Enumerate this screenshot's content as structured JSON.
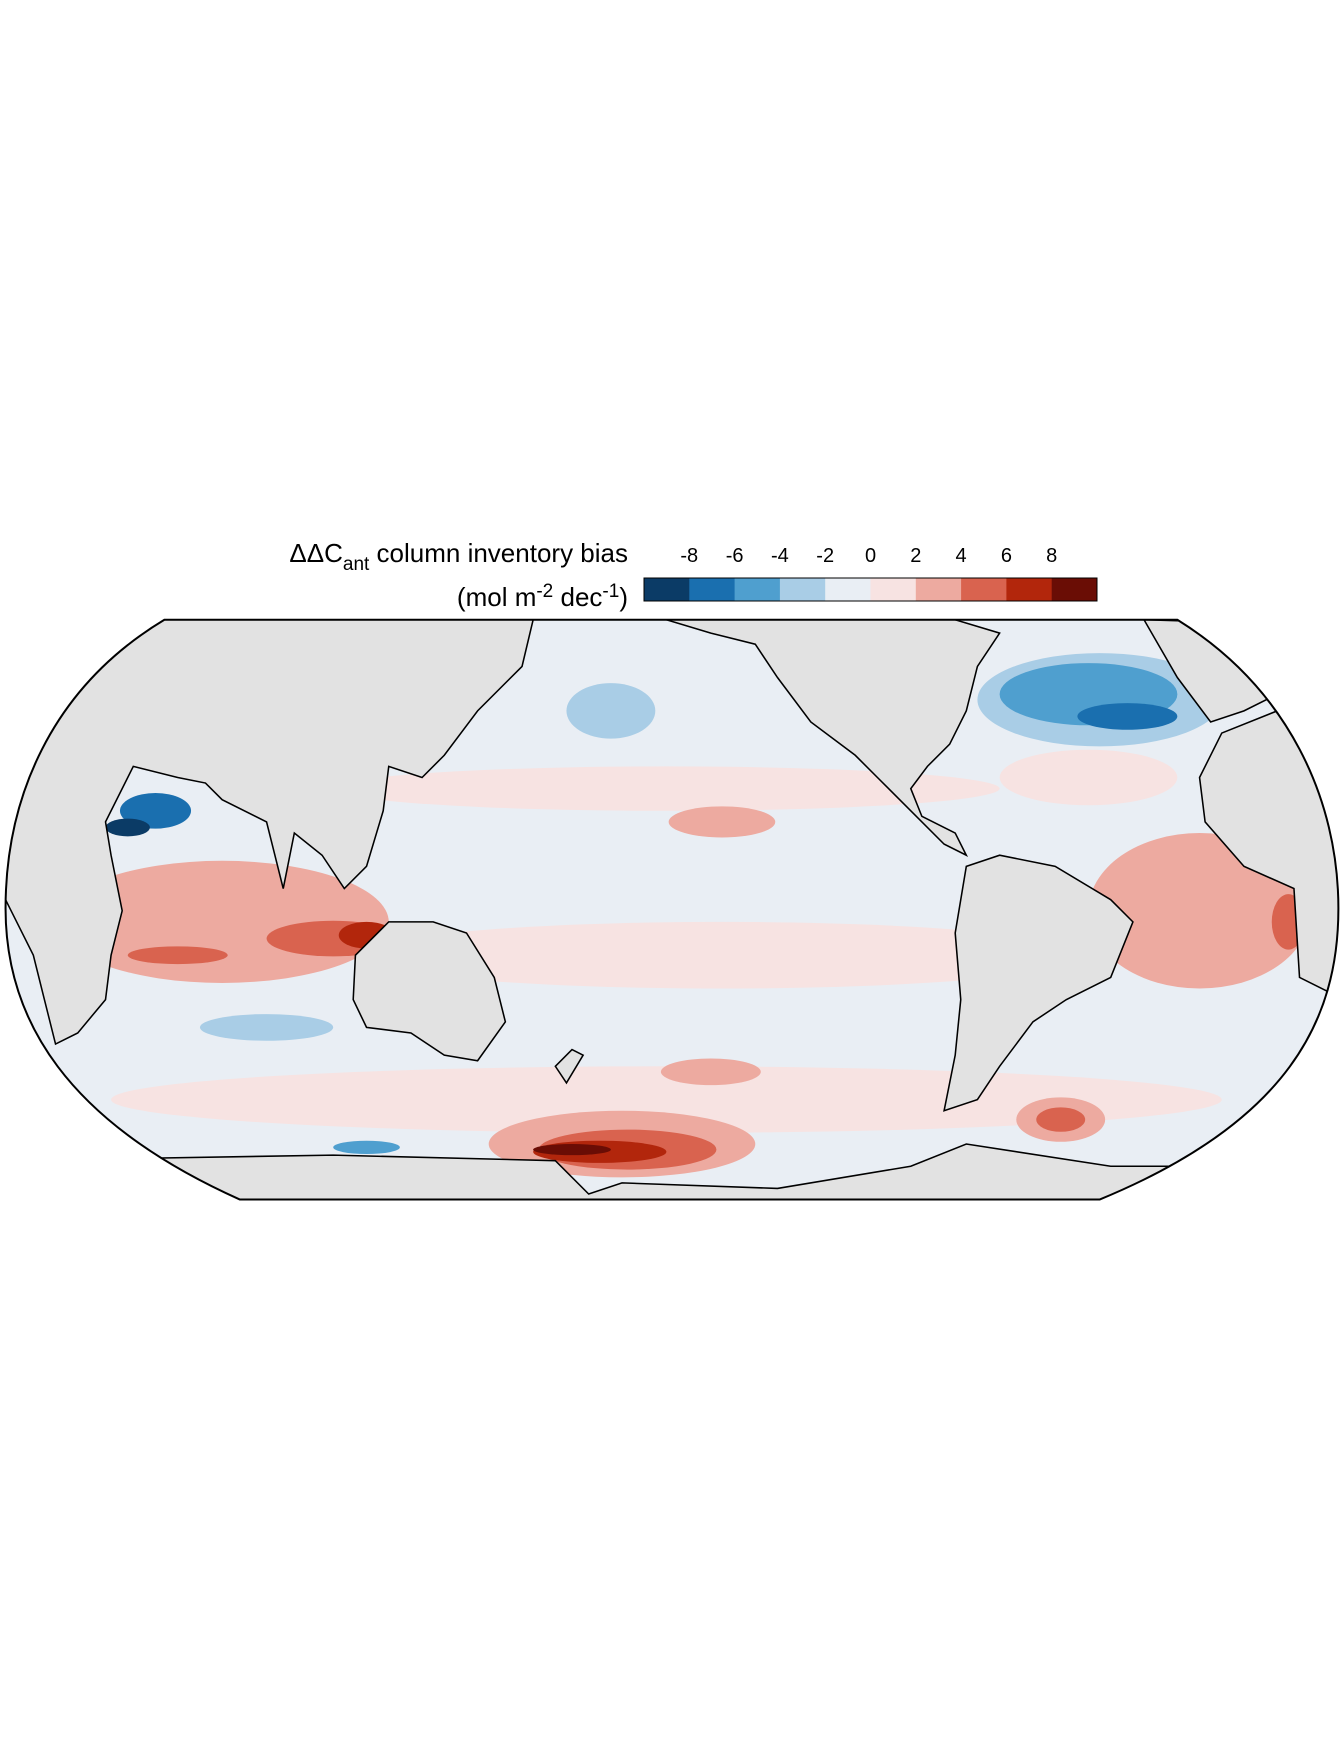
{
  "title_parts": [
    "ΔΔC",
    "ant",
    " column inventory bias"
  ],
  "units_parts": [
    "(mol m",
    "-2",
    " dec",
    "-1",
    ")"
  ],
  "colorbar": {
    "lim": [
      -10,
      10
    ],
    "ticks": [
      -8,
      -6,
      -4,
      -2,
      0,
      2,
      4,
      6,
      8
    ],
    "colors": [
      "#0b3b66",
      "#1a6faf",
      "#4f9fcf",
      "#a9cde6",
      "#e9eef4",
      "#f7e3e2",
      "#edaaa0",
      "#d9634f",
      "#b2260c",
      "#6a0d05"
    ]
  }
}
